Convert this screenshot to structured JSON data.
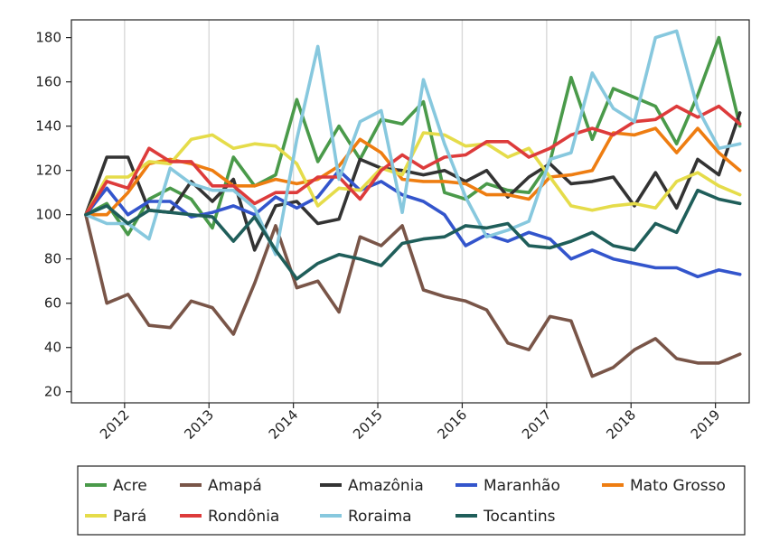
{
  "chart_data": {
    "type": "line",
    "title": "",
    "xlabel": "",
    "ylabel": "",
    "x": [
      2011.54,
      2011.79,
      2012.04,
      2012.29,
      2012.54,
      2012.79,
      2013.04,
      2013.29,
      2013.54,
      2013.79,
      2014.04,
      2014.29,
      2014.54,
      2014.79,
      2015.04,
      2015.29,
      2015.54,
      2015.79,
      2016.04,
      2016.29,
      2016.54,
      2016.79,
      2017.04,
      2017.29,
      2017.54,
      2017.79,
      2018.04,
      2018.29,
      2018.54,
      2018.79,
      2019.04,
      2019.29
    ],
    "xlim": [
      2011.37,
      2019.4
    ],
    "ylim": [
      15,
      188
    ],
    "x_ticks": [
      2012,
      2013,
      2014,
      2015,
      2016,
      2017,
      2018,
      2019
    ],
    "x_tick_labels": [
      "2012",
      "2013",
      "2014",
      "2015",
      "2016",
      "2017",
      "2018",
      "2019"
    ],
    "y_ticks": [
      20,
      40,
      60,
      80,
      100,
      120,
      140,
      160,
      180
    ],
    "y_tick_labels": [
      "20",
      "40",
      "60",
      "80",
      "100",
      "120",
      "140",
      "160",
      "180"
    ],
    "grid": "vertical",
    "legend": "bottom",
    "series": [
      {
        "name": "Acre",
        "color": "#4a9a4a",
        "values": [
          100,
          105,
          91,
          107,
          112,
          107,
          94,
          126,
          113,
          118,
          152,
          124,
          140,
          125,
          143,
          141,
          151,
          110,
          107,
          114,
          111,
          110,
          124,
          162,
          134,
          157,
          153,
          149,
          132,
          154,
          180,
          140
        ]
      },
      {
        "name": "Amapá",
        "color": "#795548",
        "values": [
          100,
          60,
          64,
          50,
          49,
          61,
          58,
          46,
          69,
          95,
          67,
          70,
          56,
          90,
          86,
          95,
          66,
          63,
          61,
          57,
          42,
          39,
          54,
          52,
          27,
          31,
          39,
          44,
          35,
          33,
          33,
          37
        ]
      },
      {
        "name": "Amazônia",
        "color": "#333333",
        "values": [
          100,
          126,
          126,
          102,
          101,
          115,
          106,
          116,
          84,
          104,
          106,
          96,
          98,
          125,
          121,
          120,
          118,
          120,
          115,
          120,
          108,
          117,
          123,
          114,
          115,
          117,
          104,
          119,
          103,
          125,
          118,
          146
        ]
      },
      {
        "name": "Maranhão",
        "color": "#3355cc",
        "values": [
          100,
          112,
          100,
          106,
          106,
          99,
          101,
          104,
          100,
          108,
          103,
          108,
          120,
          111,
          115,
          109,
          106,
          100,
          86,
          91,
          88,
          92,
          89,
          80,
          84,
          80,
          78,
          76,
          76,
          72,
          75,
          73
        ]
      },
      {
        "name": "Mato Grosso",
        "color": "#ee7d11",
        "values": [
          100,
          100,
          110,
          123,
          125,
          123,
          120,
          113,
          113,
          116,
          114,
          116,
          122,
          134,
          128,
          116,
          115,
          115,
          114,
          109,
          109,
          107,
          117,
          118,
          120,
          137,
          136,
          139,
          128,
          139,
          128,
          120
        ]
      },
      {
        "name": "Pará",
        "color": "#e5dc4a",
        "values": [
          100,
          117,
          117,
          124,
          123,
          134,
          136,
          130,
          132,
          131,
          123,
          104,
          112,
          111,
          121,
          118,
          137,
          136,
          131,
          132,
          126,
          130,
          117,
          104,
          102,
          104,
          105,
          103,
          115,
          119,
          113,
          109
        ]
      },
      {
        "name": "Rondônia",
        "color": "#dd3b3b",
        "values": [
          100,
          115,
          112,
          130,
          124,
          124,
          113,
          113,
          105,
          110,
          110,
          117,
          117,
          107,
          120,
          127,
          121,
          126,
          127,
          133,
          133,
          126,
          130,
          136,
          139,
          136,
          142,
          143,
          149,
          144,
          149,
          141
        ]
      },
      {
        "name": "Roraima",
        "color": "#87c8de",
        "values": [
          100,
          96,
          96,
          89,
          121,
          114,
          111,
          111,
          103,
          82,
          134,
          176,
          116,
          142,
          147,
          101,
          161,
          132,
          108,
          90,
          93,
          97,
          125,
          128,
          164,
          148,
          142,
          180,
          183,
          148,
          130,
          132
        ]
      },
      {
        "name": "Tocantins",
        "color": "#1f5e5a",
        "values": [
          100,
          104,
          96,
          102,
          101,
          100,
          99,
          88,
          99,
          84,
          71,
          78,
          82,
          80,
          77,
          87,
          89,
          90,
          95,
          94,
          96,
          86,
          85,
          88,
          92,
          86,
          84,
          96,
          92,
          111,
          107,
          105
        ]
      }
    ]
  }
}
